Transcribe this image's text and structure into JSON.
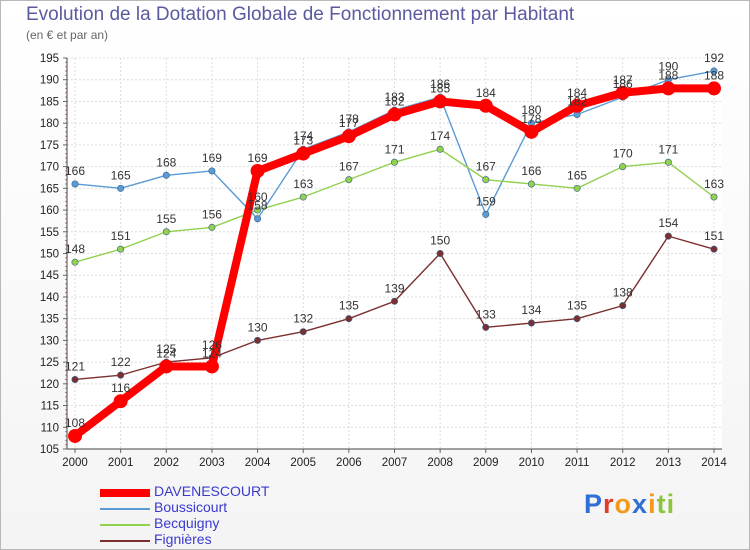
{
  "title": "Evolution de la Dotation Globale de Fonctionnement par Habitant",
  "subtitle": "(en € et par an)",
  "logo": {
    "p": "P",
    "r": "r",
    "o": "o",
    "x": "x",
    "i1": "i",
    "t": "t",
    "i2": "i",
    "colors": {
      "p": "#2f6fd6",
      "r": "#e23b2a",
      "o": "#f39a1c",
      "x": "#2f6fd6",
      "i1": "#f39a1c",
      "t": "#8bc540",
      "i2": "#8bc540"
    }
  },
  "chart_data": {
    "type": "line",
    "title": "Evolution de la Dotation Globale de Fonctionnement par Habitant",
    "ylabel": "(en € et par an)",
    "xlabel": "",
    "ylim": [
      105,
      195
    ],
    "yticks": [
      105,
      110,
      115,
      120,
      125,
      130,
      135,
      140,
      145,
      150,
      155,
      160,
      165,
      170,
      175,
      180,
      185,
      190,
      195
    ],
    "x": [
      "2000",
      "2001",
      "2002",
      "2003",
      "2004",
      "2005",
      "2006",
      "2007",
      "2008",
      "2009",
      "2010",
      "2011",
      "2012",
      "2013",
      "2014"
    ],
    "grid": true,
    "legend_position": "bottom-left",
    "series": [
      {
        "name": "DAVENESCOURT",
        "color": "#ff0000",
        "values": [
          108,
          116,
          124,
          124,
          169,
          173,
          177,
          182,
          185,
          184,
          178,
          184,
          187,
          188,
          188
        ]
      },
      {
        "name": "Boussicourt",
        "color": "#5b9bd5",
        "values": [
          166,
          165,
          168,
          169,
          158,
          174,
          178,
          183,
          186,
          159,
          180,
          182,
          186,
          190,
          192
        ]
      },
      {
        "name": "Becquigny",
        "color": "#92d050",
        "values": [
          148,
          151,
          155,
          156,
          160,
          163,
          167,
          171,
          174,
          167,
          166,
          165,
          170,
          171,
          163
        ]
      },
      {
        "name": "Fignières",
        "color": "#7b2f2f",
        "values": [
          121,
          122,
          125,
          126,
          130,
          132,
          135,
          139,
          150,
          133,
          134,
          135,
          138,
          154,
          151
        ]
      }
    ]
  }
}
